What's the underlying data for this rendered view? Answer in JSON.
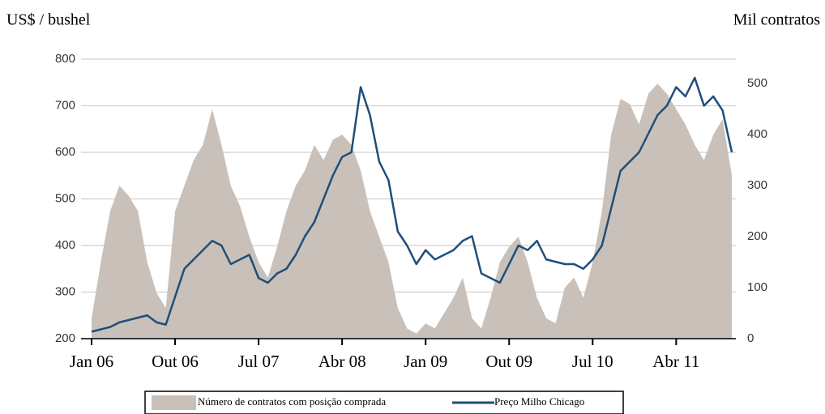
{
  "chart_data": {
    "type": "area-line",
    "y_label": "US$ / bushel",
    "y2_label": "Mil contratos",
    "categories": [
      "Jan 06",
      null,
      null,
      null,
      null,
      null,
      null,
      null,
      null,
      "Out 06",
      null,
      null,
      null,
      null,
      null,
      null,
      null,
      null,
      "Jul 07",
      null,
      null,
      null,
      null,
      null,
      null,
      null,
      null,
      "Abr 08",
      null,
      null,
      null,
      null,
      null,
      null,
      null,
      null,
      "Jan 09",
      null,
      null,
      null,
      null,
      null,
      null,
      null,
      null,
      "Out 09",
      null,
      null,
      null,
      null,
      null,
      null,
      null,
      null,
      "Jul 10",
      null,
      null,
      null,
      null,
      null,
      null,
      null,
      null,
      "Abr 11",
      null,
      null,
      null,
      null,
      null,
      null
    ],
    "series": [
      {
        "name": "Número de contratos com posição comprada",
        "color": "#c9c1b9",
        "axis": "y2",
        "values": [
          40,
          150,
          250,
          300,
          280,
          250,
          150,
          90,
          60,
          250,
          300,
          350,
          380,
          450,
          380,
          300,
          260,
          200,
          150,
          120,
          180,
          250,
          300,
          330,
          380,
          350,
          390,
          400,
          380,
          330,
          250,
          200,
          150,
          60,
          20,
          10,
          30,
          20,
          50,
          80,
          120,
          40,
          20,
          80,
          150,
          180,
          200,
          150,
          80,
          40,
          30,
          100,
          120,
          80,
          150,
          250,
          400,
          470,
          460,
          420,
          480,
          500,
          480,
          450,
          420,
          380,
          350,
          400,
          430,
          320
        ]
      },
      {
        "name": "Preço Milho Chicago",
        "color": "#1f4e79",
        "axis": "y",
        "values": [
          215,
          220,
          225,
          235,
          240,
          245,
          250,
          235,
          230,
          290,
          350,
          370,
          390,
          410,
          400,
          360,
          370,
          380,
          330,
          320,
          340,
          350,
          380,
          420,
          450,
          500,
          550,
          590,
          600,
          740,
          680,
          580,
          540,
          430,
          400,
          360,
          390,
          370,
          380,
          390,
          410,
          420,
          340,
          330,
          320,
          360,
          400,
          390,
          410,
          370,
          365,
          360,
          360,
          350,
          370,
          400,
          480,
          560,
          580,
          600,
          640,
          680,
          700,
          740,
          720,
          760,
          700,
          720,
          690,
          600
        ]
      }
    ],
    "ylim": [
      200,
      800
    ],
    "yticks": [
      200,
      300,
      400,
      500,
      600,
      700,
      800
    ],
    "y2lim": [
      0,
      548
    ],
    "y2ticks": [
      0,
      100,
      200,
      300,
      400,
      500
    ],
    "grid": true,
    "legend": "bottom"
  }
}
